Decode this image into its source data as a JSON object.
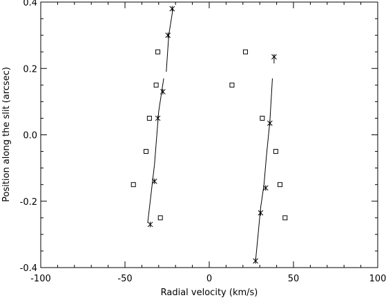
{
  "chart_data": {
    "type": "scatter",
    "xlabel": "Radial velocity (km/s)",
    "ylabel": "Position along the slit (arcsec)",
    "xlim": [
      -100,
      100
    ],
    "ylim": [
      -0.4,
      0.4
    ],
    "x_ticks": [
      -100,
      -50,
      0,
      50,
      100
    ],
    "y_ticks": [
      0.4,
      0.2,
      0.0,
      -0.2,
      -0.4
    ],
    "x_tick_labels": [
      "-100",
      "-50",
      "0",
      "50",
      "100"
    ],
    "y_tick_labels": [
      "0.4",
      "0.2",
      "0.0",
      "-0.2",
      "-0.4"
    ],
    "grid": false,
    "color": "#000000",
    "series": [
      {
        "marker": "square",
        "points": [
          [
            -45,
            -0.15
          ],
          [
            -29,
            -0.25
          ],
          [
            -37.5,
            -0.05
          ],
          [
            -35.5,
            0.05
          ],
          [
            -31.5,
            0.15
          ],
          [
            -30.5,
            0.25
          ],
          [
            13.5,
            0.15
          ],
          [
            21.5,
            0.25
          ],
          [
            31.5,
            0.05
          ],
          [
            39.5,
            -0.05
          ],
          [
            42,
            -0.15
          ],
          [
            45,
            -0.25
          ]
        ]
      },
      {
        "marker": "asterisk",
        "points": [
          [
            -35,
            -0.27
          ],
          [
            -32.5,
            -0.14
          ],
          [
            -30.5,
            0.05
          ],
          [
            -27.5,
            0.13
          ],
          [
            -24.5,
            0.3
          ],
          [
            -22,
            0.38
          ],
          [
            27.5,
            -0.38
          ],
          [
            30.5,
            -0.235
          ],
          [
            33.5,
            -0.16
          ],
          [
            36,
            0.035
          ],
          [
            38.5,
            0.235
          ]
        ]
      },
      {
        "marker": "none",
        "lines": [
          [
            [
              -36.5,
              -0.265
            ],
            [
              -32.5,
              -0.09
            ]
          ],
          [
            [
              -32.5,
              -0.09
            ],
            [
              -30,
              0.07
            ],
            [
              -27,
              0.17
            ]
          ],
          [
            [
              -25.5,
              0.19
            ],
            [
              -24,
              0.3
            ],
            [
              -21.5,
              0.38
            ]
          ],
          [
            [
              27.5,
              -0.38
            ],
            [
              29,
              -0.3
            ],
            [
              30.5,
              -0.22
            ],
            [
              32.5,
              -0.15
            ],
            [
              34,
              -0.06
            ],
            [
              36,
              0.04
            ],
            [
              37.5,
              0.17
            ]
          ],
          [
            [
              38.5,
              0.23
            ],
            [
              38.5,
              0.215
            ]
          ]
        ]
      }
    ]
  }
}
